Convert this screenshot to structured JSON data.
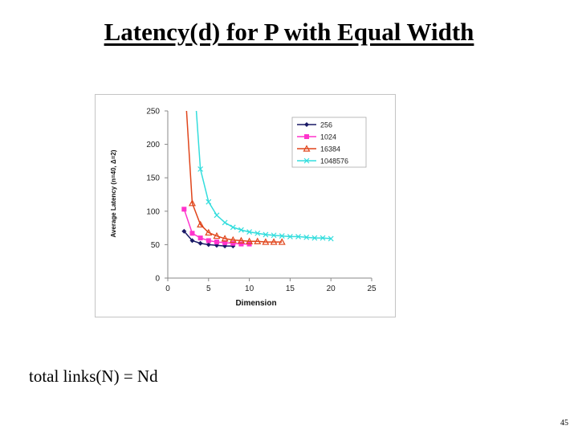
{
  "slide": {
    "title": "Latency(d) for P with Equal Width",
    "body_text": "total links(N) = Nd",
    "page_number": "45"
  },
  "chart_data": {
    "type": "line",
    "title": "",
    "xlabel": "Dimension",
    "ylabel": "Average Latency (n=40, Δ=2)",
    "xlim": [
      0,
      25
    ],
    "ylim": [
      0,
      250
    ],
    "xticks": [
      0,
      5,
      10,
      15,
      20,
      25
    ],
    "yticks": [
      0,
      50,
      100,
      150,
      200,
      250
    ],
    "grid": false,
    "legend_position": "top-right",
    "series": [
      {
        "name": "256",
        "color": "#1a1a66",
        "marker": "diamond",
        "x": [
          2,
          3,
          4,
          5,
          6,
          7,
          8
        ],
        "y": [
          70,
          56,
          52,
          50,
          49,
          48,
          48
        ]
      },
      {
        "name": "1024",
        "color": "#ff33cc",
        "marker": "square",
        "x": [
          2,
          3,
          4,
          5,
          6,
          7,
          8,
          9,
          10
        ],
        "y": [
          103,
          67,
          60,
          56,
          54,
          53,
          52,
          51,
          51
        ]
      },
      {
        "name": "16384",
        "color": "#e0451b",
        "marker": "triangle",
        "x": [
          2.3,
          3,
          4,
          5,
          6,
          7,
          8,
          9,
          10,
          11,
          12,
          13,
          14
        ],
        "y": [
          250,
          112,
          80,
          68,
          63,
          59,
          57,
          56,
          55,
          55,
          54,
          54,
          54
        ],
        "line_start": [
          2.3,
          250
        ]
      },
      {
        "name": "1048576",
        "color": "#33dddd",
        "marker": "x",
        "x": [
          3.5,
          4,
          5,
          6,
          7,
          8,
          9,
          10,
          11,
          12,
          13,
          14,
          15,
          16,
          17,
          18,
          19,
          20
        ],
        "y": [
          250,
          163,
          114,
          94,
          83,
          76,
          72,
          69,
          67,
          65,
          64,
          63,
          62,
          62,
          61,
          60,
          60,
          59
        ],
        "line_start": [
          3.5,
          250
        ]
      }
    ]
  }
}
